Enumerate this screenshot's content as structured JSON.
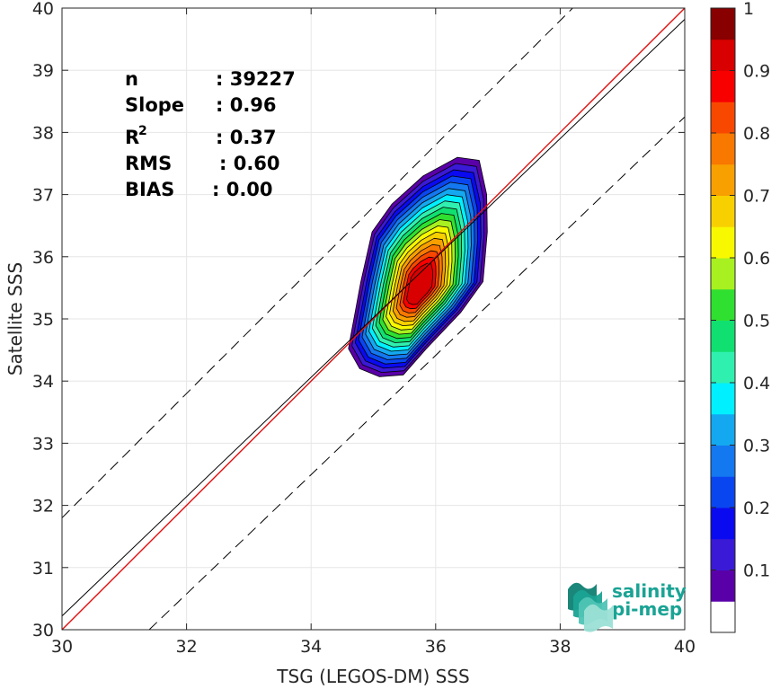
{
  "chart_data": {
    "type": "contour",
    "xlabel": "TSG (LEGOS-DM) SSS",
    "ylabel": "Satellite SSS",
    "xlim": [
      30,
      40
    ],
    "ylim": [
      30,
      40
    ],
    "xticks": [
      "30",
      "32",
      "34",
      "36",
      "38",
      "40"
    ],
    "yticks": [
      "30",
      "31",
      "32",
      "33",
      "34",
      "35",
      "36",
      "37",
      "38",
      "39",
      "40"
    ],
    "grid": true,
    "lines": [
      {
        "style": "solid-red",
        "points": [
          [
            30,
            30
          ],
          [
            40,
            40
          ]
        ]
      },
      {
        "style": "solid-black",
        "points": [
          [
            30,
            30.22
          ],
          [
            40,
            39.82
          ]
        ]
      },
      {
        "style": "dashed-black",
        "points": [
          [
            30,
            31.8
          ],
          [
            38.2,
            40
          ]
        ]
      },
      {
        "style": "dashed-black",
        "points": [
          [
            31.4,
            30
          ],
          [
            40,
            38.25
          ]
        ]
      }
    ],
    "contour_center": [
      35.75,
      35.5
    ],
    "contour_levels": [
      0.05,
      0.1,
      0.15,
      0.2,
      0.25,
      0.3,
      0.35,
      0.4,
      0.45,
      0.5,
      0.55,
      0.6,
      0.65,
      0.7,
      0.75,
      0.8,
      0.85,
      0.9
    ],
    "stats": [
      {
        "label": "n",
        "value": ": 39227"
      },
      {
        "label": "Slope",
        "value": ": 0.96"
      },
      {
        "label": "R",
        "sup": "2",
        "value": ": 0.37"
      },
      {
        "label": "RMS",
        "value": ": 0.60"
      },
      {
        "label": "BIAS",
        "value": ": 0.00"
      }
    ],
    "colorbar": {
      "ticks": [
        "0.1",
        "0.2",
        "0.3",
        "0.4",
        "0.5",
        "0.6",
        "0.7",
        "0.8",
        "0.9",
        "1"
      ],
      "colors": [
        "#ffffff",
        "#5a00a8",
        "#3a1ad6",
        "#0a0af0",
        "#0a46f0",
        "#1478f0",
        "#14a8f0",
        "#00f0ff",
        "#30f0b0",
        "#10e070",
        "#30e030",
        "#a8f020",
        "#f8f800",
        "#f8d000",
        "#f8a000",
        "#f87800",
        "#f84800",
        "#f80000",
        "#d80000",
        "#880000"
      ]
    }
  },
  "logo": {
    "line1": "salinity",
    "line2": "pi-mep"
  }
}
